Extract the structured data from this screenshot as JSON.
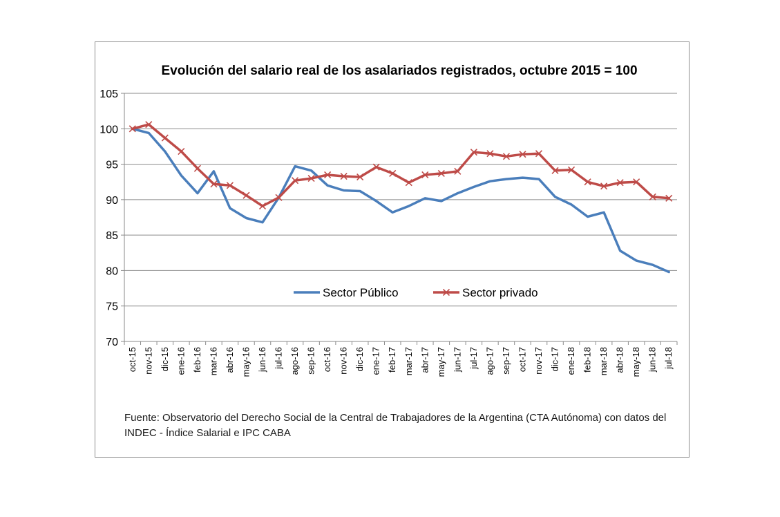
{
  "chart_data": {
    "type": "line",
    "title": "Evolución del salario real de los asalariados registrados, octubre 2015 = 100",
    "xlabel": "",
    "ylabel": "",
    "ylim": [
      70,
      105
    ],
    "yticks": [
      "70",
      "75",
      "80",
      "85",
      "90",
      "95",
      "100",
      "105"
    ],
    "grid": true,
    "legend_position": "inside-lower-center",
    "categories": [
      "oct-15",
      "nov-15",
      "dic-15",
      "ene-16",
      "feb-16",
      "mar-16",
      "abr-16",
      "may-16",
      "jun-16",
      "jul-16",
      "ago-16",
      "sep-16",
      "oct-16",
      "nov-16",
      "dic-16",
      "ene-17",
      "feb-17",
      "mar-17",
      "abr-17",
      "may-17",
      "jun-17",
      "jul-17",
      "ago-17",
      "sep-17",
      "oct-17",
      "nov-17",
      "dic-17",
      "ene-18",
      "feb-18",
      "mar-18",
      "abr-18",
      "may-18",
      "jun-18",
      "jul-18"
    ],
    "series": [
      {
        "name": "Sector Público",
        "color": "#4a7ebb",
        "marker": "none",
        "values": [
          100,
          99.4,
          96.8,
          93.4,
          90.9,
          94.0,
          88.8,
          87.4,
          86.8,
          90.3,
          94.7,
          94.1,
          92.0,
          91.3,
          91.2,
          89.8,
          88.2,
          89.1,
          90.2,
          89.8,
          90.9,
          91.8,
          92.6,
          92.9,
          93.1,
          92.9,
          90.4,
          89.3,
          87.6,
          88.2,
          82.8,
          81.4,
          80.8,
          79.8
        ]
      },
      {
        "name": "Sector privado",
        "color": "#be4b48",
        "marker": "x",
        "values": [
          100,
          100.6,
          98.7,
          96.8,
          94.4,
          92.2,
          92.0,
          90.6,
          89.1,
          90.3,
          92.7,
          93.0,
          93.5,
          93.3,
          93.2,
          94.6,
          93.7,
          92.4,
          93.5,
          93.7,
          94.0,
          96.7,
          96.5,
          96.1,
          96.4,
          96.5,
          94.1,
          94.2,
          92.5,
          91.9,
          92.4,
          92.5,
          90.4,
          90.2
        ]
      }
    ],
    "source": "Fuente: Observatorio del Derecho Social de la Central de Trabajadores de la Argentina (CTA Autónoma) con datos del INDEC - Índice Salarial e IPC CABA"
  }
}
